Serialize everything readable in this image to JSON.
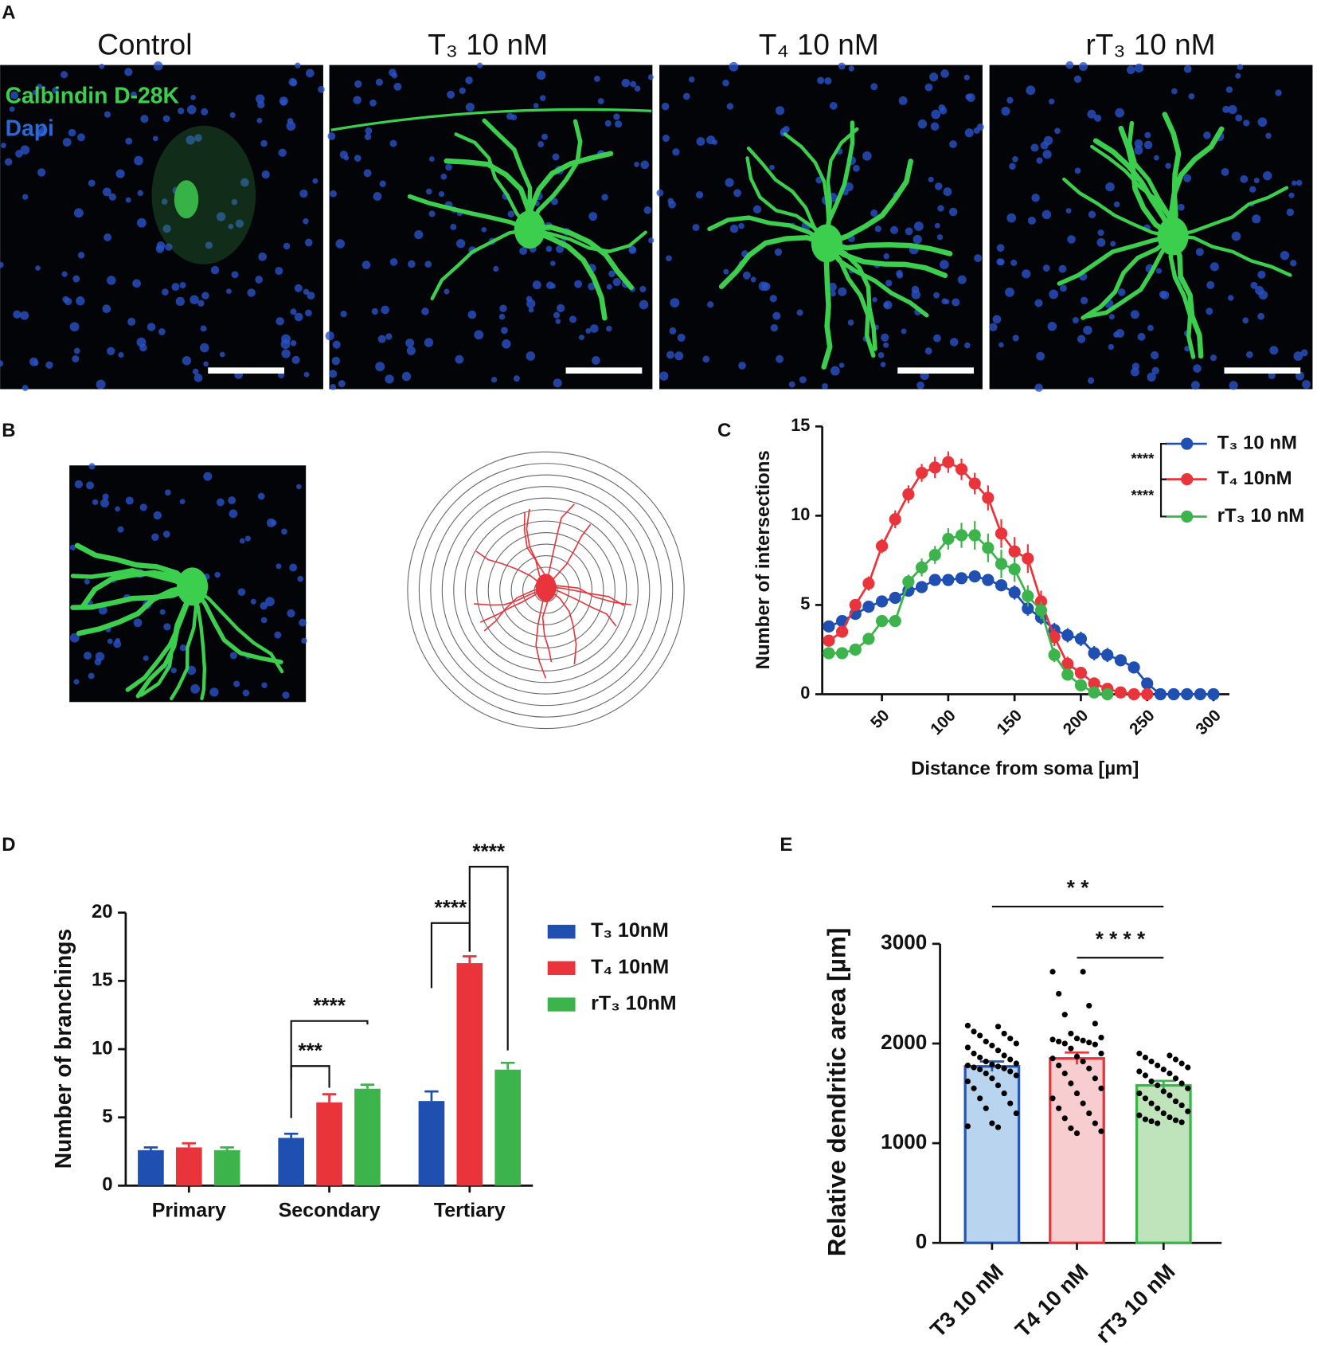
{
  "panel_labels": [
    "A",
    "B",
    "C",
    "D",
    "E"
  ],
  "panel_a": {
    "titles": [
      "Control",
      "T₃ 10 nM",
      "T₄ 10 nM",
      "rT₃ 10 nM"
    ],
    "stain_labels": [
      "Calbindin D-28K",
      "Dapi"
    ]
  },
  "chart_data": [
    {
      "type": "line",
      "x_label": "Distance from soma [µm]",
      "y_label": "Number of intersections",
      "x": [
        10,
        20,
        30,
        40,
        50,
        60,
        70,
        80,
        90,
        100,
        110,
        120,
        130,
        140,
        150,
        160,
        170,
        180,
        190,
        200,
        210,
        220,
        230,
        240,
        250,
        260,
        270,
        280,
        290,
        300
      ],
      "xlim": [
        5,
        312
      ],
      "xticks": [
        50,
        100,
        150,
        200,
        250,
        300
      ],
      "ylim": [
        0,
        15
      ],
      "yticks": [
        0,
        5,
        10,
        15
      ],
      "series": [
        {
          "name": "T₃ 10 nM",
          "color": "#1f4fb0",
          "values": [
            3.8,
            4.1,
            4.5,
            4.9,
            5.2,
            5.4,
            5.8,
            6.0,
            6.4,
            6.4,
            6.5,
            6.6,
            6.4,
            6.1,
            5.7,
            4.8,
            4.3,
            3.6,
            3.3,
            3.1,
            2.3,
            2.2,
            1.9,
            1.5,
            0.6,
            0,
            0,
            0,
            0,
            0
          ],
          "errors": [
            0.3,
            0.3,
            0.3,
            0.3,
            0.3,
            0.3,
            0.3,
            0.3,
            0.3,
            0.3,
            0.3,
            0.3,
            0.3,
            0.3,
            0.4,
            0.4,
            0.4,
            0.4,
            0.4,
            0.4,
            0.4,
            0.4,
            0.3,
            0.3,
            0.3,
            0,
            0,
            0,
            0,
            0
          ]
        },
        {
          "name": "T₄ 10nM",
          "color": "#e8343a",
          "values": [
            3.0,
            3.5,
            5.0,
            6.2,
            8.3,
            9.8,
            11.2,
            12.4,
            12.7,
            13.0,
            12.6,
            11.8,
            11.0,
            9.0,
            8.0,
            7.6,
            5.2,
            3.2,
            1.7,
            1.2,
            0.6,
            0.3,
            0.1,
            0,
            0,
            null,
            null,
            null,
            null,
            null
          ],
          "errors": [
            0.2,
            0.3,
            0.3,
            0.4,
            0.4,
            0.5,
            0.5,
            0.5,
            0.6,
            0.6,
            0.6,
            0.6,
            0.7,
            0.8,
            0.8,
            0.8,
            0.6,
            0.5,
            0.4,
            0.3,
            0.2,
            0.1,
            0.1,
            0,
            0,
            null,
            null,
            null,
            null,
            null
          ]
        },
        {
          "name": "rT₃ 10 nM",
          "color": "#3cb44b",
          "values": [
            2.3,
            2.3,
            2.5,
            3.1,
            4.1,
            4.1,
            6.3,
            7.1,
            7.8,
            8.7,
            8.9,
            8.9,
            8.2,
            7.3,
            7.0,
            5.5,
            4.7,
            2.2,
            1.1,
            0.5,
            0.1,
            0.0,
            null,
            null,
            null,
            null,
            null,
            null,
            null,
            null
          ],
          "errors": [
            0.2,
            0.2,
            0.2,
            0.3,
            0.3,
            0.3,
            0.4,
            0.5,
            0.5,
            0.6,
            0.7,
            0.8,
            0.8,
            0.8,
            0.7,
            0.6,
            0.5,
            0.4,
            0.3,
            0.2,
            0.1,
            0,
            null,
            null,
            null,
            null,
            null,
            null,
            null,
            null
          ]
        }
      ],
      "annotations": [
        "****",
        "****"
      ]
    },
    {
      "type": "bar",
      "y_label": "Number of branchings",
      "categories": [
        "Primary",
        "Secondary",
        "Tertiary"
      ],
      "ylim": [
        0,
        20
      ],
      "yticks": [
        0,
        5,
        10,
        15,
        20
      ],
      "series": [
        {
          "name": "T₃ 10nM",
          "color": "#1f4fb0",
          "values": [
            2.6,
            3.5,
            6.2
          ],
          "errors": [
            0.2,
            0.3,
            0.7
          ]
        },
        {
          "name": "T₄ 10nM",
          "color": "#e8343a",
          "values": [
            2.8,
            6.1,
            16.3
          ],
          "errors": [
            0.3,
            0.6,
            0.5
          ]
        },
        {
          "name": "rT₃ 10nM",
          "color": "#3cb44b",
          "values": [
            2.6,
            7.1,
            8.5
          ],
          "errors": [
            0.2,
            0.3,
            0.5
          ]
        }
      ],
      "annotations": [
        "***",
        "****",
        "****",
        "****"
      ]
    },
    {
      "type": "bar_scatter",
      "y_label": "Relative dendritic area [µm]",
      "categories": [
        "T3 10 nM",
        "T4 10 nM",
        "rT3 10 nM"
      ],
      "ylim": [
        0,
        3000
      ],
      "yticks": [
        0,
        1000,
        2000,
        3000
      ],
      "values": [
        1770,
        1850,
        1580
      ],
      "errors": [
        50,
        60,
        45
      ],
      "colors": [
        "#b8d4ef",
        "#f8cdd0",
        "#bfe3bb"
      ],
      "edge_colors": [
        "#2756b5",
        "#e8343a",
        "#3cb44b"
      ],
      "points": [
        [
          2180,
          2170,
          2120,
          2100,
          2080,
          2050,
          2020,
          2000,
          1980,
          1960,
          1930,
          1900,
          1880,
          1860,
          1840,
          1820,
          1800,
          1790,
          1780,
          1770,
          1760,
          1750,
          1740,
          1720,
          1700,
          1680,
          1650,
          1620,
          1580,
          1550,
          1500,
          1450,
          1400,
          1350,
          1300,
          1200,
          1170,
          1160
        ],
        [
          2720,
          2720,
          2500,
          2380,
          2290,
          2200,
          2100,
          2060,
          2050,
          2040,
          2030,
          2020,
          2010,
          2000,
          1990,
          1950,
          1900,
          1870,
          1850,
          1820,
          1780,
          1750,
          1700,
          1650,
          1600,
          1550,
          1500,
          1450,
          1400,
          1350,
          1300,
          1250,
          1200,
          1150,
          1120,
          1100
        ],
        [
          1900,
          1880,
          1860,
          1840,
          1820,
          1800,
          1780,
          1760,
          1740,
          1720,
          1700,
          1680,
          1650,
          1620,
          1600,
          1580,
          1550,
          1520,
          1500,
          1480,
          1450,
          1420,
          1400,
          1380,
          1350,
          1320,
          1300,
          1280,
          1260,
          1240,
          1230,
          1220,
          1210,
          1200
        ]
      ],
      "annotations": [
        "* *",
        "* * * *"
      ]
    }
  ]
}
